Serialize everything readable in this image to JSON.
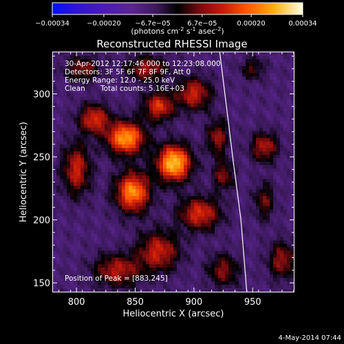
{
  "chart_data": {
    "type": "heatmap",
    "title": "Reconstructed RHESSI Image",
    "xlabel": "Heliocentric X (arcsec)",
    "ylabel": "Heliocentric Y (arcsec)",
    "xlim": [
      780,
      985
    ],
    "ylim": [
      143,
      333
    ],
    "x_ticks": [
      800,
      850,
      900,
      950
    ],
    "y_ticks": [
      150,
      200,
      250,
      300
    ],
    "colorbar": {
      "label": "(photons cm",
      "label_exp1": "-2",
      "label_mid": " s",
      "label_exp2": "-1",
      "label_mid2": " asec",
      "label_exp3": "-2",
      "label_end": ")",
      "tick_labels": [
        "−0.00034",
        "−0.00020",
        "−6.7e−05",
        "6.7e−05",
        "0.00020",
        "0.00034"
      ],
      "tick_values": [
        -0.00034,
        -0.0002,
        -6.7e-05,
        6.7e-05,
        0.0002,
        0.00034
      ],
      "range": [
        -0.00034,
        0.00034
      ]
    },
    "annotations": [
      "30-Apr-2012 12:17:46.000 to 12:23:08.000",
      "Detectors: 3F 5F 6F 7F 8F 9F, Att 0",
      "Energy Range: 12.0 - 25.0 keV",
      "Clean",
      "Total counts: 5.16E+03"
    ],
    "peak_label": "Position of Peak = [883,245]",
    "peak_position": [
      883,
      245
    ],
    "limb_curve": {
      "x": [
        922,
        933,
        940,
        945
      ],
      "y": [
        333,
        250,
        200,
        143
      ]
    },
    "sources": [
      {
        "x": 883,
        "y": 245,
        "sx": 10,
        "sy": 10,
        "a": 1.0
      },
      {
        "x": 842,
        "y": 265,
        "sx": 11,
        "sy": 9,
        "a": 0.9
      },
      {
        "x": 848,
        "y": 222,
        "sx": 10,
        "sy": 11,
        "a": 0.85
      },
      {
        "x": 815,
        "y": 280,
        "sx": 9,
        "sy": 8,
        "a": 0.6
      },
      {
        "x": 800,
        "y": 240,
        "sx": 8,
        "sy": 14,
        "a": 0.55
      },
      {
        "x": 870,
        "y": 290,
        "sx": 9,
        "sy": 8,
        "a": 0.6
      },
      {
        "x": 905,
        "y": 205,
        "sx": 12,
        "sy": 9,
        "a": 0.6
      },
      {
        "x": 870,
        "y": 175,
        "sx": 12,
        "sy": 11,
        "a": 0.55
      },
      {
        "x": 835,
        "y": 160,
        "sx": 14,
        "sy": 9,
        "a": 0.5
      },
      {
        "x": 900,
        "y": 300,
        "sx": 10,
        "sy": 9,
        "a": 0.55
      },
      {
        "x": 920,
        "y": 265,
        "sx": 6,
        "sy": 10,
        "a": 0.45
      },
      {
        "x": 925,
        "y": 235,
        "sx": 6,
        "sy": 8,
        "a": 0.4
      },
      {
        "x": 960,
        "y": 258,
        "sx": 8,
        "sy": 8,
        "a": 0.5
      },
      {
        "x": 960,
        "y": 215,
        "sx": 6,
        "sy": 10,
        "a": 0.35
      },
      {
        "x": 975,
        "y": 168,
        "sx": 8,
        "sy": 10,
        "a": 0.45
      },
      {
        "x": 860,
        "y": 320,
        "sx": 12,
        "sy": 7,
        "a": 0.45
      },
      {
        "x": 805,
        "y": 320,
        "sx": 10,
        "sy": 7,
        "a": 0.4
      },
      {
        "x": 925,
        "y": 160,
        "sx": 9,
        "sy": 9,
        "a": 0.4
      },
      {
        "x": 950,
        "y": 320,
        "sx": 7,
        "sy": 6,
        "a": 0.3
      }
    ],
    "grid": false
  },
  "footer_date": "4-May-2014 07:44"
}
